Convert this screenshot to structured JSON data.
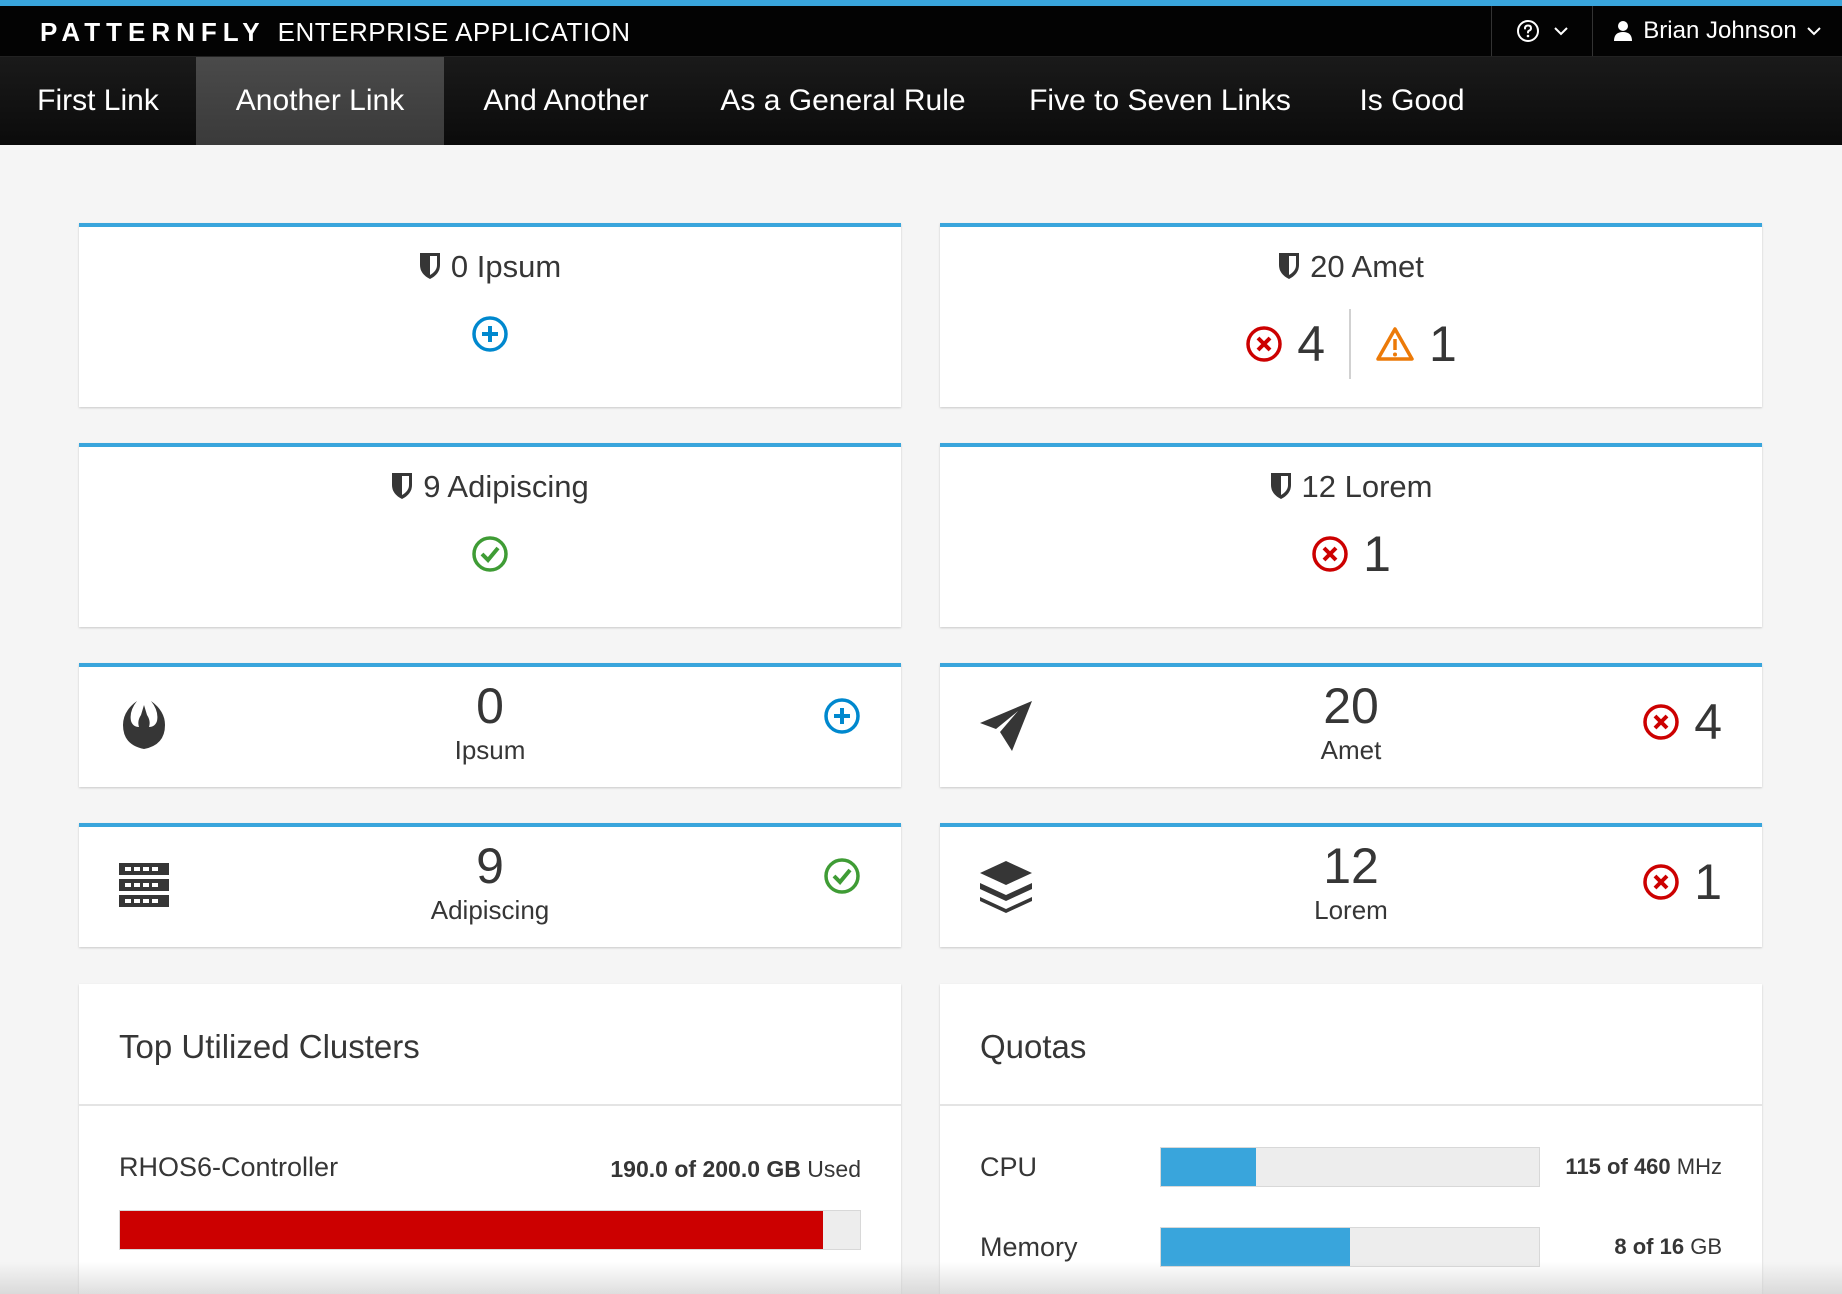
{
  "masthead": {
    "brand_bold": "PATTERNFLY",
    "brand_rest": "ENTERPRISE APPLICATION",
    "help_icon": "question-circle-icon",
    "user_name": "Brian Johnson"
  },
  "nav": {
    "items": [
      {
        "label": "First Link"
      },
      {
        "label": "Another Link",
        "active": true
      },
      {
        "label": "And Another"
      },
      {
        "label": "As a General Rule"
      },
      {
        "label": "Five to Seven Links"
      },
      {
        "label": "Is Good"
      }
    ]
  },
  "status_cards": [
    {
      "count": "0",
      "title": "Ipsum",
      "status": [
        {
          "icon": "add-circle-icon"
        }
      ]
    },
    {
      "count": "20",
      "title": "Amet",
      "status": [
        {
          "icon": "error-circle-icon",
          "count": "4"
        },
        {
          "icon": "warning-triangle-icon",
          "count": "1"
        }
      ]
    },
    {
      "count": "9",
      "title": "Adipiscing",
      "status": [
        {
          "icon": "ok-circle-icon"
        }
      ]
    },
    {
      "count": "12",
      "title": "Lorem",
      "status": [
        {
          "icon": "error-circle-icon",
          "count": "1"
        }
      ]
    }
  ],
  "mini_cards": [
    {
      "icon": "rebel-icon",
      "count": "0",
      "label": "Ipsum",
      "status_icon": "add-circle-icon",
      "status_count": ""
    },
    {
      "icon": "paper-plane-icon",
      "count": "20",
      "label": "Amet",
      "status_icon": "error-circle-icon",
      "status_count": "4"
    },
    {
      "icon": "server-icon",
      "count": "9",
      "label": "Adipiscing",
      "status_icon": "ok-circle-icon",
      "status_count": ""
    },
    {
      "icon": "layers-icon",
      "count": "12",
      "label": "Lorem",
      "status_icon": "error-circle-icon",
      "status_count": "1"
    }
  ],
  "utilization": {
    "title": "Top Utilized Clusters",
    "items": [
      {
        "name": "RHOS6-Controller",
        "used": "190.0",
        "of": "of",
        "total": "200.0",
        "unit": "GB",
        "suffix": "Used",
        "fraction": 0.95
      }
    ]
  },
  "quotas": {
    "title": "Quotas",
    "items": [
      {
        "name": "CPU",
        "used": "115",
        "of": "of",
        "total": "460",
        "unit": "MHz",
        "fraction": 0.25
      },
      {
        "name": "Memory",
        "used": "8",
        "of": "of",
        "total": "16",
        "unit": "GB",
        "fraction": 0.5
      }
    ]
  },
  "colors": {
    "accent": "#39a5dc",
    "danger": "#cc0000",
    "warning": "#ec7a08",
    "success": "#3f9c35",
    "info": "#0088ce"
  }
}
